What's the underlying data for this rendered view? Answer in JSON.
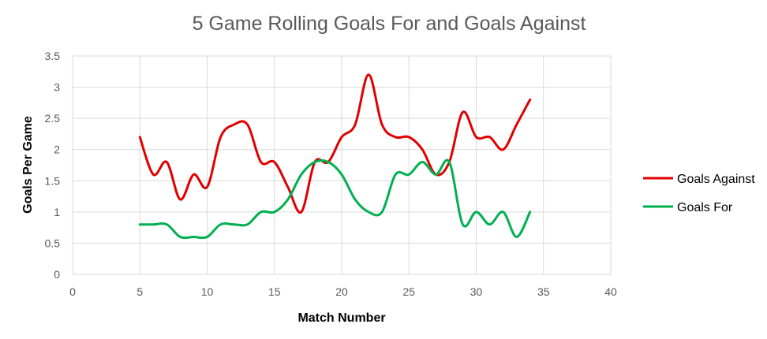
{
  "chart_data": {
    "type": "line",
    "title": "5 Game Rolling Goals For and Goals Against",
    "xlabel": "Match Number",
    "ylabel": "Goals Per Game",
    "xlim": [
      0,
      40
    ],
    "ylim": [
      0,
      3.5
    ],
    "xticks": [
      "0",
      "5",
      "10",
      "15",
      "20",
      "25",
      "30",
      "35",
      "40"
    ],
    "yticks": [
      "0",
      "0.5",
      "1",
      "1.5",
      "2",
      "2.5",
      "3",
      "3.5"
    ],
    "grid": true,
    "legend_position": "right",
    "x": [
      5,
      6,
      7,
      8,
      9,
      10,
      11,
      12,
      13,
      14,
      15,
      16,
      17,
      18,
      19,
      20,
      21,
      22,
      23,
      24,
      25,
      26,
      27,
      28,
      29,
      30,
      31,
      32,
      33,
      34
    ],
    "series": [
      {
        "name": "Goals Against",
        "color": "#e00000",
        "values": [
          2.2,
          1.6,
          1.8,
          1.2,
          1.6,
          1.4,
          2.2,
          2.4,
          2.4,
          1.8,
          1.8,
          1.4,
          1.0,
          1.8,
          1.8,
          2.2,
          2.4,
          3.2,
          2.4,
          2.2,
          2.2,
          2.0,
          1.6,
          1.8,
          2.6,
          2.2,
          2.2,
          2.0,
          2.4,
          2.8
        ]
      },
      {
        "name": "Goals For",
        "color": "#00b050",
        "values": [
          0.8,
          0.8,
          0.8,
          0.6,
          0.6,
          0.6,
          0.8,
          0.8,
          0.8,
          1.0,
          1.0,
          1.2,
          1.6,
          1.8,
          1.8,
          1.6,
          1.2,
          1.0,
          1.0,
          1.6,
          1.6,
          1.8,
          1.6,
          1.8,
          0.8,
          1.0,
          0.8,
          1.0,
          0.6,
          1.0
        ]
      }
    ]
  }
}
